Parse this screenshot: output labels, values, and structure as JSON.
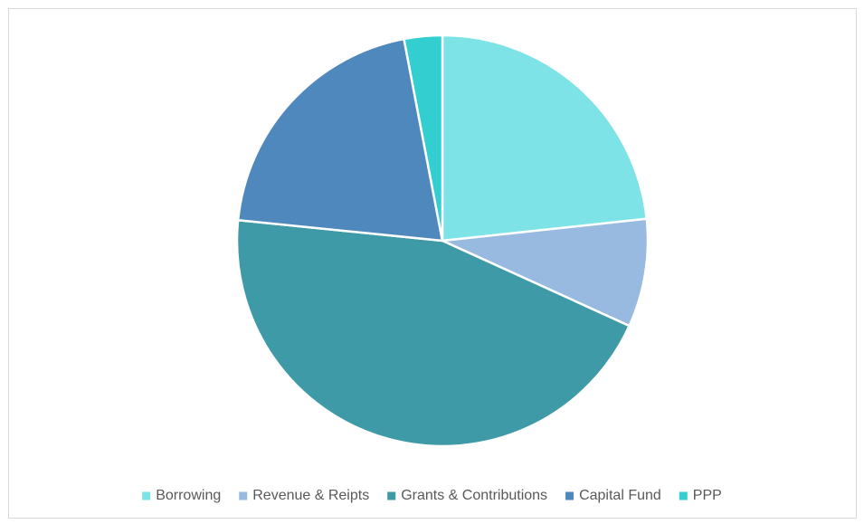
{
  "chart_data": {
    "type": "pie",
    "categories": [
      "Borrowing",
      "Revenue & Reipts",
      "Grants & Contributions",
      "Capital Fund",
      "PPP"
    ],
    "values": [
      23.3,
      8.5,
      44.8,
      20.4,
      3.0
    ],
    "colors": [
      "#7de3e6",
      "#98b9e0",
      "#3e9aa6",
      "#4f88bd",
      "#33cfd0"
    ],
    "legend": "bottom"
  }
}
